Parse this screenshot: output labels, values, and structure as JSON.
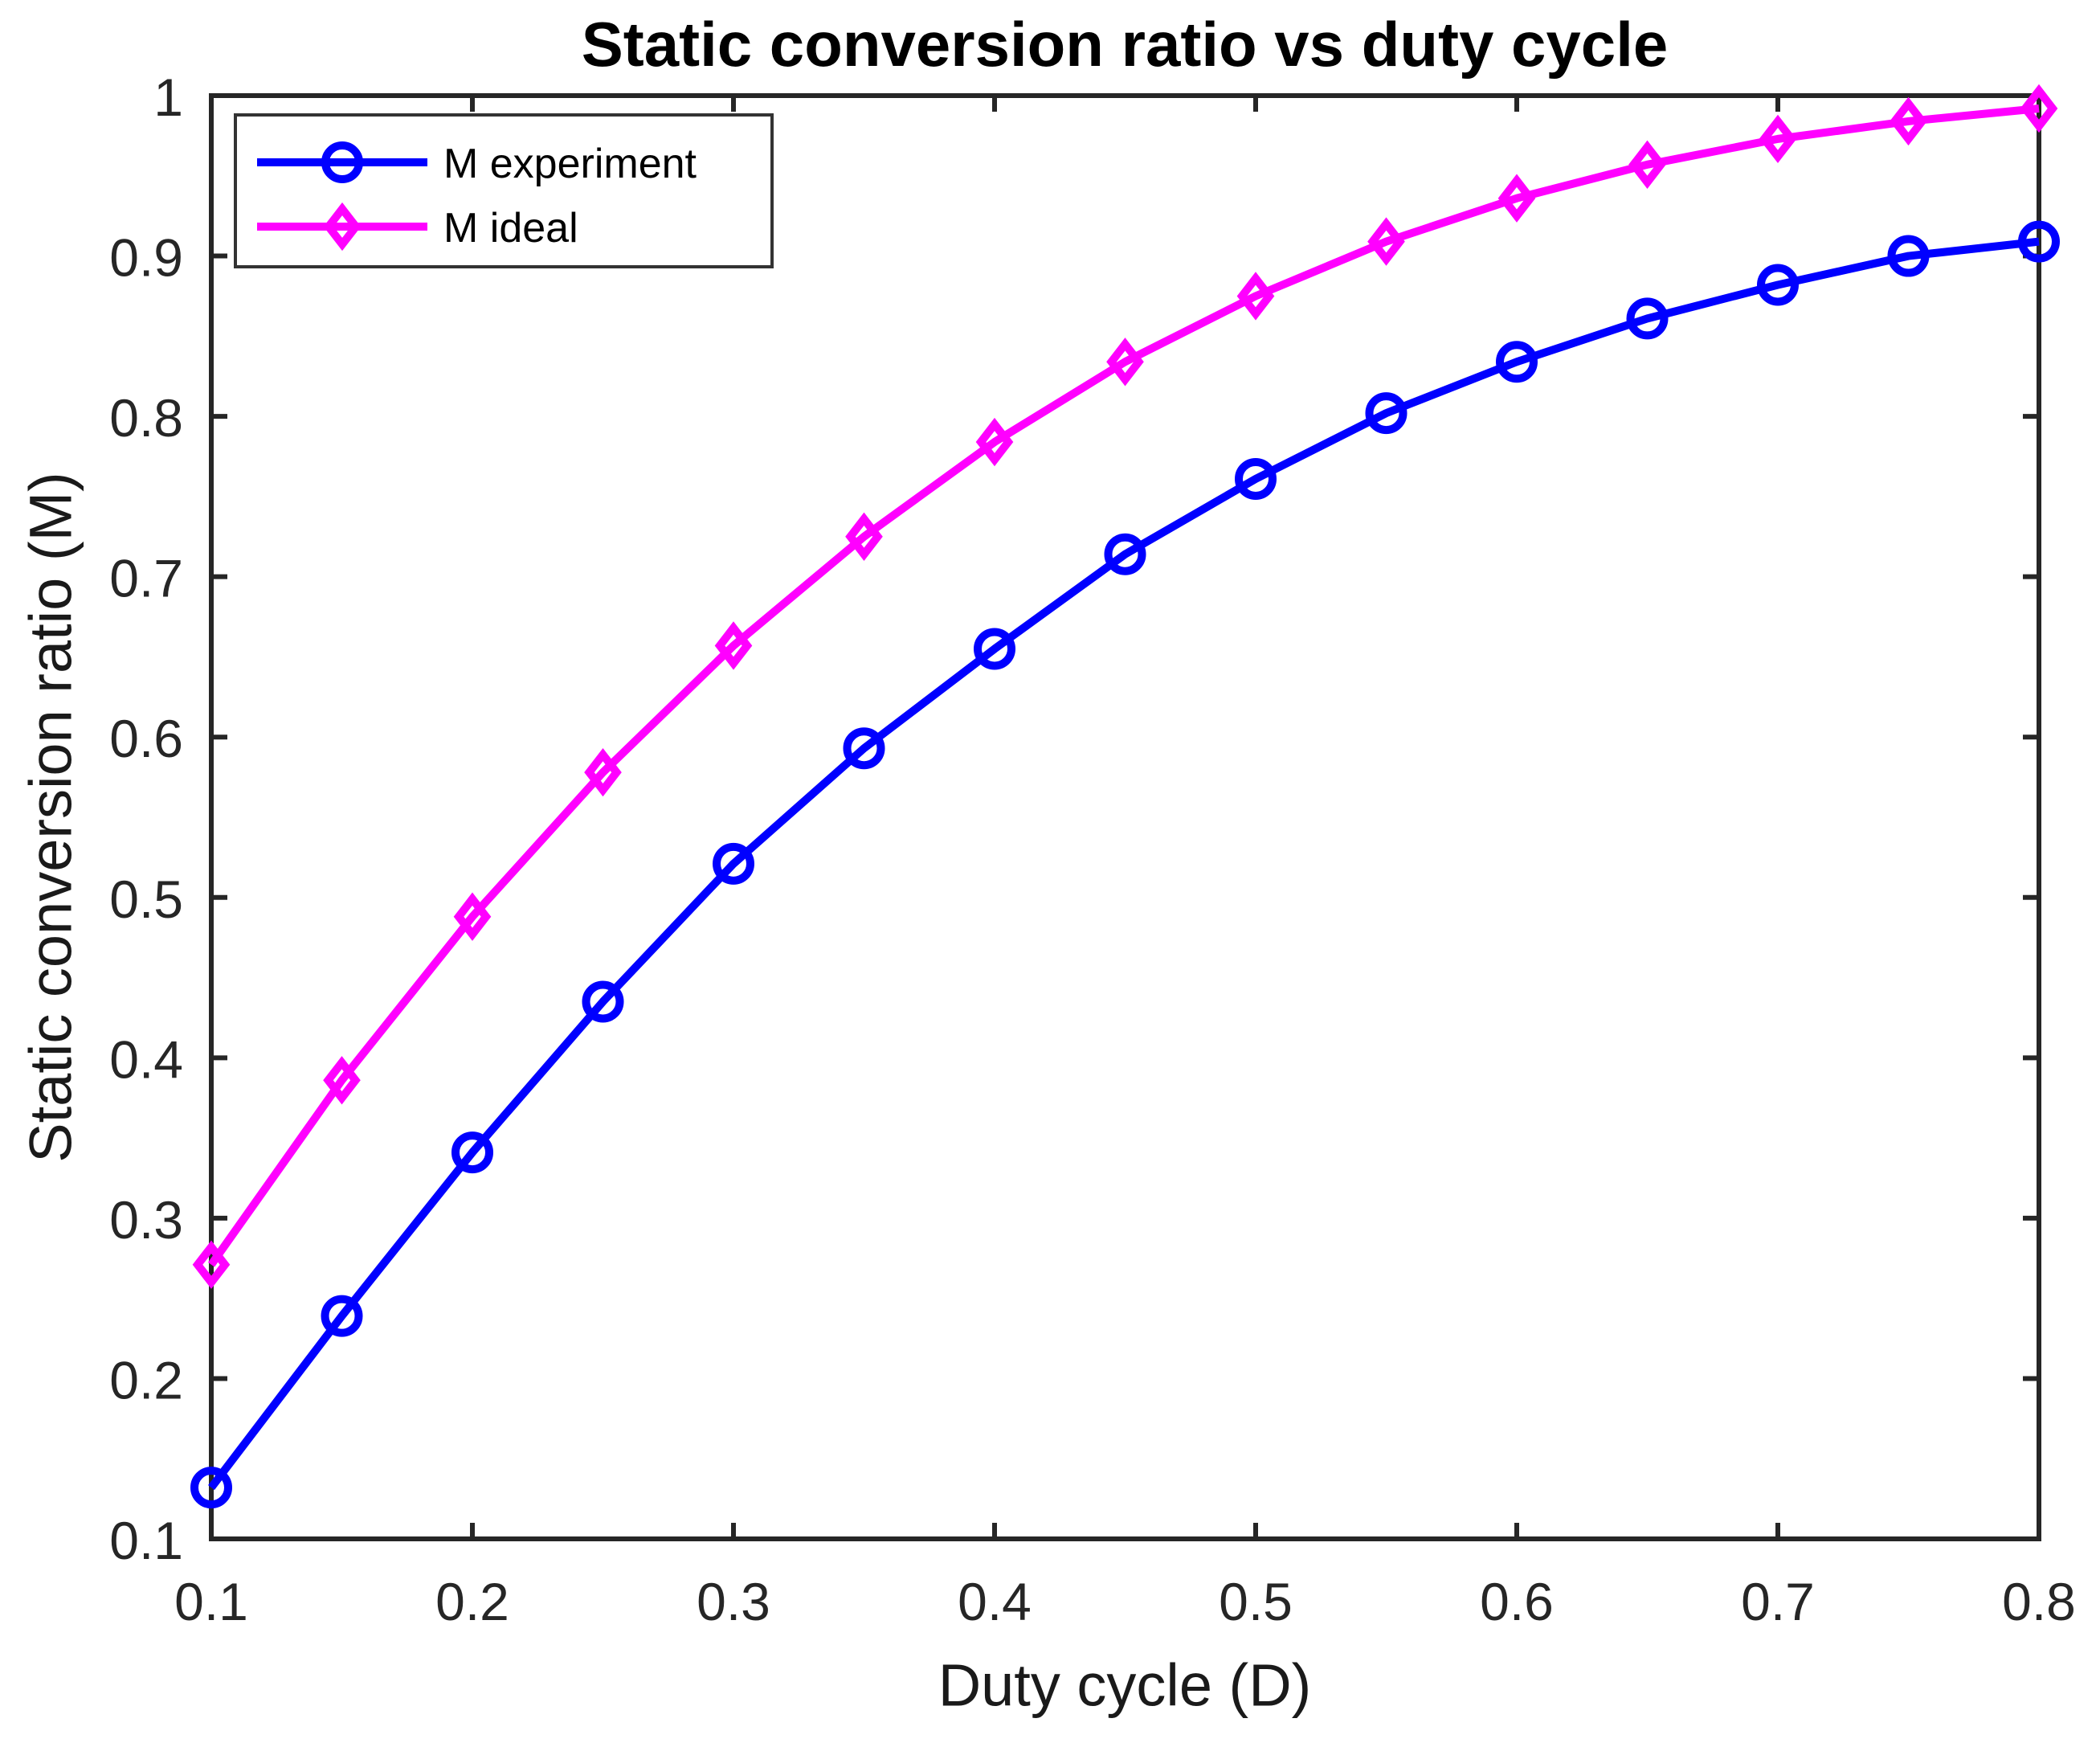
{
  "chart_data": {
    "type": "line",
    "title": "Static conversion ratio vs duty cycle",
    "xlabel": "Duty cycle (D)",
    "ylabel": "Static conversion ratio (M)",
    "xlim": [
      0.1,
      0.8
    ],
    "ylim": [
      0.1,
      1.0
    ],
    "x_ticks": [
      "0.1",
      "0.2",
      "0.3",
      "0.4",
      "0.5",
      "0.6",
      "0.7",
      "0.8"
    ],
    "y_ticks": [
      "0.1",
      "0.2",
      "0.3",
      "0.4",
      "0.5",
      "0.6",
      "0.7",
      "0.8",
      "0.9",
      "1"
    ],
    "grid": false,
    "legend_position": "top-left",
    "x": [
      0.1,
      0.15,
      0.2,
      0.25,
      0.3,
      0.35,
      0.4,
      0.45,
      0.5,
      0.55,
      0.6,
      0.65,
      0.7,
      0.75,
      0.8
    ],
    "series": [
      {
        "name": "M experiment",
        "color": "#0000FF",
        "marker": "circle",
        "values": [
          0.132,
          0.239,
          0.341,
          0.435,
          0.521,
          0.593,
          0.655,
          0.714,
          0.761,
          0.802,
          0.834,
          0.861,
          0.882,
          0.9,
          0.909
        ]
      },
      {
        "name": "M ideal",
        "color": "#FF00FF",
        "marker": "diamond",
        "values": [
          0.271,
          0.386,
          0.488,
          0.578,
          0.657,
          0.725,
          0.784,
          0.834,
          0.875,
          0.909,
          0.936,
          0.957,
          0.973,
          0.984,
          0.992
        ]
      }
    ]
  },
  "colors": {
    "axis": "#262626",
    "title": "#000000",
    "axis_label": "#1a1a1a",
    "tick_label": "#262626",
    "legend_border": "#333333",
    "background": "#ffffff"
  }
}
